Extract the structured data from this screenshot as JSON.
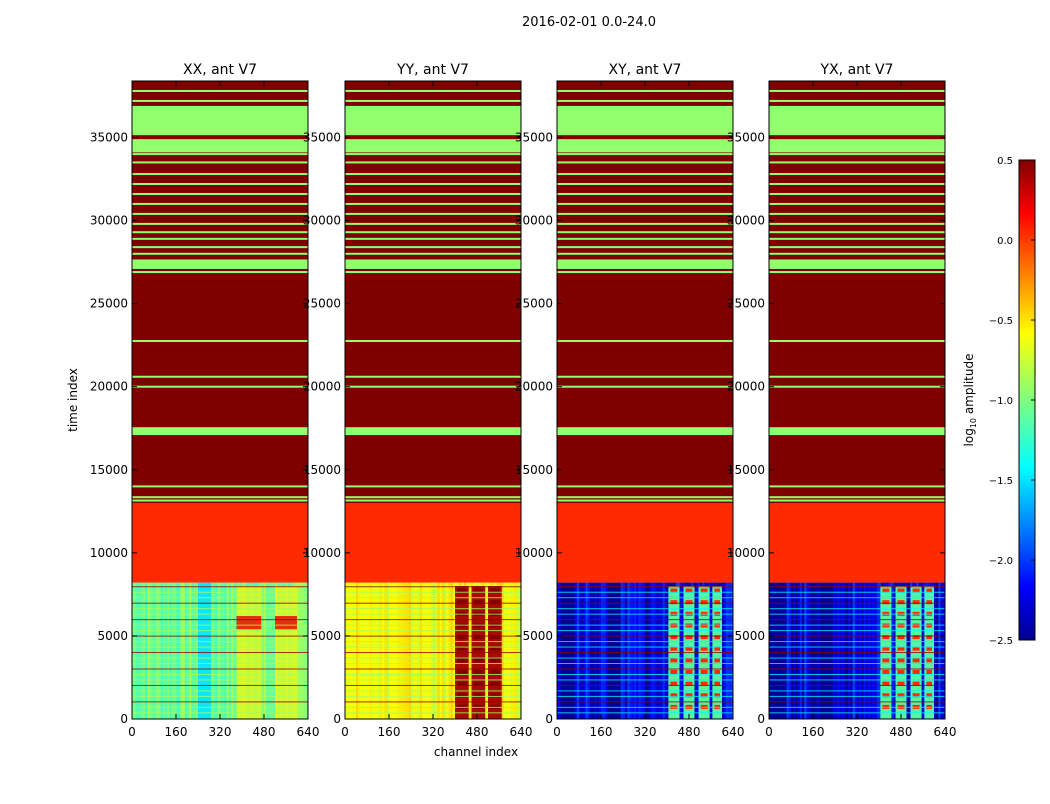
{
  "suptitle": "2016-02-01 0.0-24.0",
  "chart_data": {
    "type": "heatmap",
    "xlabel": "channel index",
    "ylabel": "time index",
    "xlim": [
      0,
      640
    ],
    "ylim": [
      0,
      38400
    ],
    "x_ticks": [
      0,
      160,
      320,
      480,
      640
    ],
    "y_ticks": [
      0,
      5000,
      10000,
      15000,
      20000,
      25000,
      30000,
      35000
    ],
    "panels": [
      {
        "title": "XX, ant V7",
        "pol": "XX",
        "low_region": "green",
        "low_region_level": -1.05,
        "features": [
          [
            380,
            470
          ],
          [
            520,
            560
          ],
          [
            560,
            600
          ]
        ]
      },
      {
        "title": "YY, ant V7",
        "pol": "YY",
        "low_region": "yellow",
        "low_region_level": -0.65,
        "features": [
          [
            400,
            450
          ],
          [
            460,
            510
          ],
          [
            520,
            570
          ]
        ]
      },
      {
        "title": "XY, ant V7",
        "pol": "XY",
        "low_region": "blue",
        "low_region_level": -2.2,
        "features": [
          [
            405,
            445
          ],
          [
            460,
            500
          ],
          [
            515,
            555
          ],
          [
            565,
            600
          ]
        ]
      },
      {
        "title": "YX, ant V7",
        "pol": "YX",
        "low_region": "blue",
        "low_region_level": -2.2,
        "features": [
          [
            405,
            445
          ],
          [
            460,
            500
          ],
          [
            515,
            555
          ],
          [
            565,
            600
          ]
        ]
      }
    ],
    "row_bands": [
      {
        "from": 0,
        "to": 8200,
        "level": "variable"
      },
      {
        "from": 8200,
        "to": 13000,
        "level": 0.0
      },
      {
        "from": 13000,
        "to": 38400,
        "level": 0.5
      }
    ],
    "flag_lines_level": -0.95,
    "flag_lines": [
      13150,
      13350,
      14000,
      17150,
      17350,
      17500,
      20000,
      20600,
      22750,
      26900,
      27150,
      27350,
      27600,
      28000,
      28400,
      28900,
      29300,
      29800,
      30400,
      31000,
      31600,
      32200,
      32800,
      33500,
      34000,
      34600,
      35200,
      37200,
      37800
    ],
    "flag_blocks": [
      [
        17100,
        17550
      ],
      [
        27100,
        27600
      ],
      [
        34100,
        34900
      ],
      [
        35250,
        36900
      ]
    ],
    "colorbar": {
      "label": "log10 amplitude",
      "label_base": "log",
      "label_sub": "10",
      "label_rest": " amplitude",
      "range": [
        -2.5,
        0.5
      ],
      "ticks": [
        "0.5",
        "0.0",
        "−0.5",
        "−1.0",
        "−1.5",
        "−2.0",
        "−2.5"
      ],
      "colormap": "jet"
    }
  }
}
